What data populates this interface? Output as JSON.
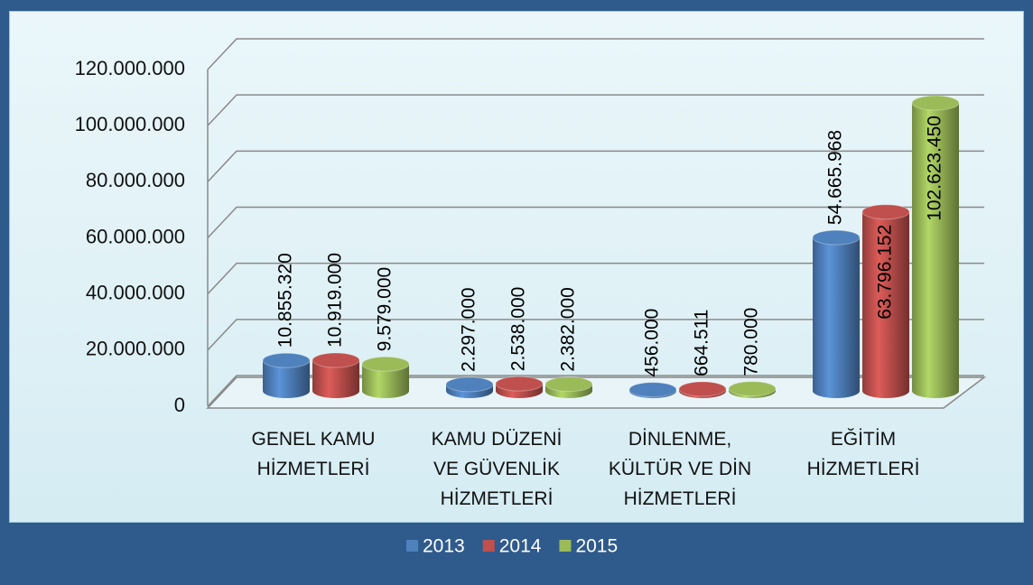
{
  "chart_data": {
    "type": "bar3d",
    "categories": [
      "GENEL KAMU\nHİZMETLERİ",
      "KAMU DÜZENİ\nVE GÜVENLİK\nHİZMETLERİ",
      "DİNLENME,\nKÜLTÜR VE DİN\nHİZMETLERİ",
      "EĞİTİM\nHİZMETLERİ"
    ],
    "series": [
      {
        "name": "2013",
        "color": "#4f81bd",
        "values": [
          10855320,
          2297000,
          456000,
          54665968
        ],
        "value_labels": [
          "10.855.320",
          "2.297.000",
          "456.000",
          "54.665.968"
        ]
      },
      {
        "name": "2014",
        "color": "#c0504d",
        "values": [
          10919000,
          2538000,
          664511,
          63796152
        ],
        "value_labels": [
          "10.919.000",
          "2.538.000",
          "664.511",
          "63.796.152"
        ]
      },
      {
        "name": "2015",
        "color": "#9bbb59",
        "values": [
          9579000,
          2382000,
          780000,
          102623450
        ],
        "value_labels": [
          "9.579.000",
          "2.382.000",
          "780.000",
          "102.623.450"
        ]
      }
    ],
    "ylim": [
      0,
      120000000
    ],
    "yticks": [
      0,
      {
        "value": 20000000,
        "label": "20.000.000"
      },
      {
        "value": 40000000,
        "label": "40.000.000"
      },
      {
        "value": 60000000,
        "label": "60.000.000"
      },
      {
        "value": 80000000,
        "label": "80.000.000"
      },
      {
        "value": 100000000,
        "label": "100.000.000"
      },
      {
        "value": 120000000,
        "label": "120.000.000"
      }
    ],
    "grid": true,
    "legend": "bottom"
  }
}
